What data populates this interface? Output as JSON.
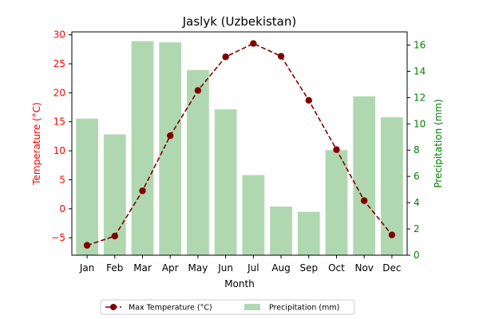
{
  "chart_data": {
    "type": "bar+line",
    "title": "Jaslyk (Uzbekistan)",
    "xlabel": "Month",
    "ylabel_left": "Temperature (°C)",
    "ylabel_right": "Precipitation (mm)",
    "categories": [
      "Jan",
      "Feb",
      "Mar",
      "Apr",
      "May",
      "Jun",
      "Jul",
      "Aug",
      "Sep",
      "Oct",
      "Nov",
      "Dec"
    ],
    "y_left_lim": [
      -8,
      30.5
    ],
    "y_left_ticks": [
      -5,
      0,
      5,
      10,
      15,
      20,
      25,
      30
    ],
    "y_right_lim": [
      0,
      17
    ],
    "y_right_ticks": [
      0,
      2,
      4,
      6,
      8,
      10,
      12,
      14,
      16
    ],
    "series": [
      {
        "name": "Max Temperature (°C)",
        "type": "line",
        "axis": "left",
        "color": "#800000",
        "values": [
          -6.3,
          -4.7,
          3.1,
          12.6,
          20.4,
          26.2,
          28.5,
          26.3,
          18.7,
          10.2,
          1.4,
          -4.5
        ]
      },
      {
        "name": "Precipitation (mm)",
        "type": "bar",
        "axis": "right",
        "color": "#b0d8b0",
        "values": [
          10.4,
          9.2,
          16.3,
          16.2,
          14.1,
          11.1,
          6.1,
          3.7,
          3.3,
          8.0,
          12.1,
          10.5
        ]
      }
    ],
    "left_axis_color": "#ff0000",
    "right_axis_color": "#008000",
    "legend_position": "bottom-center",
    "grid": false
  }
}
